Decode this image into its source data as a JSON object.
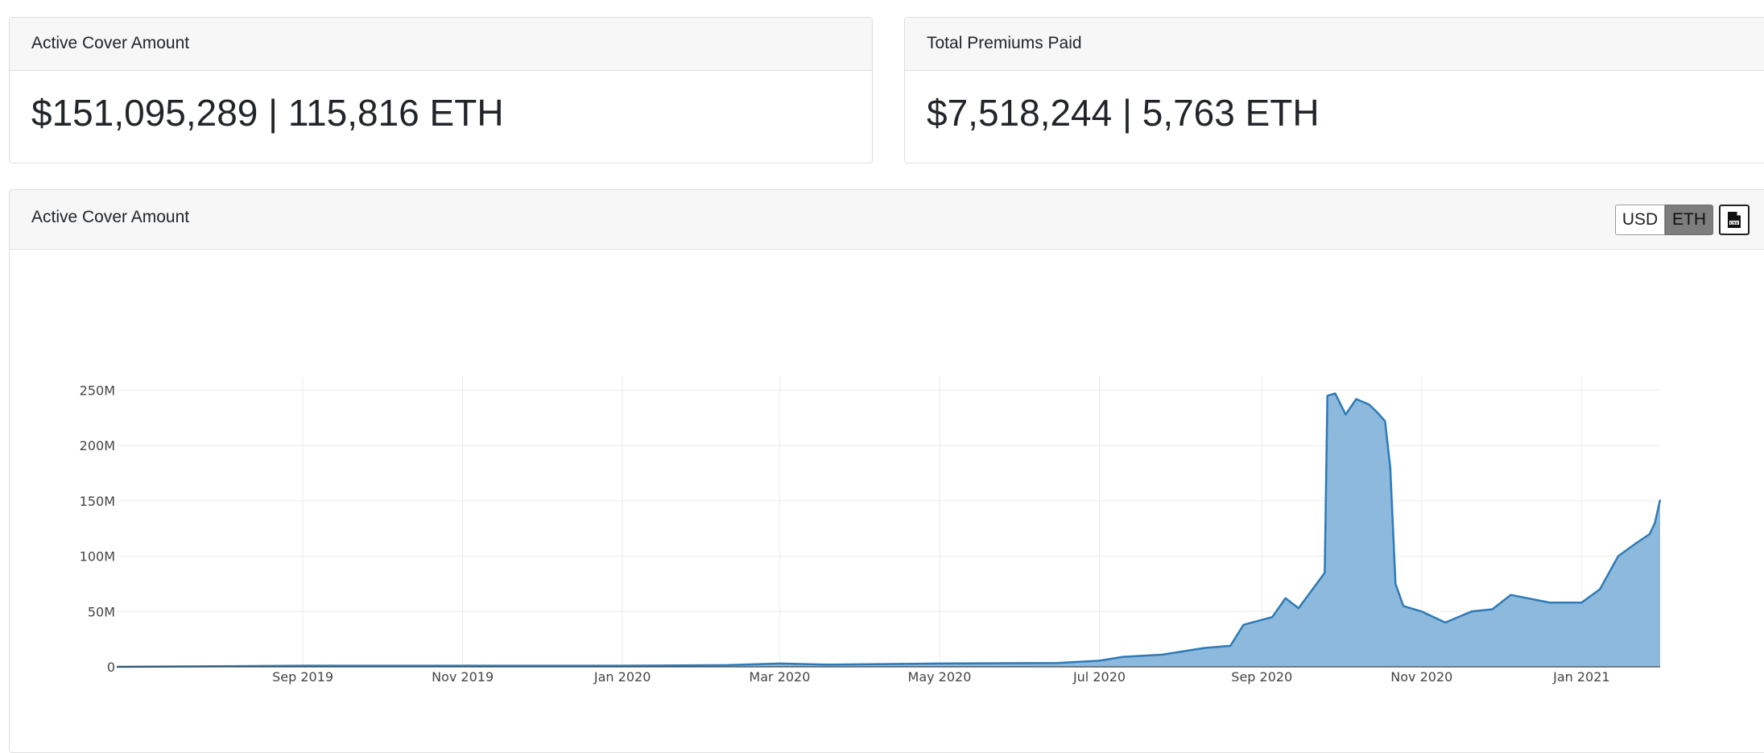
{
  "stats": {
    "active_cover": {
      "title": "Active Cover Amount",
      "value": "$151,095,289 | 115,816 ETH"
    },
    "premiums": {
      "title": "Total Premiums Paid",
      "value": "$7,518,244 | 5,763 ETH"
    }
  },
  "chart_panel": {
    "title": "Active Cover Amount",
    "toggle": {
      "usd_label": "USD",
      "eth_label": "ETH",
      "selected": "ETH"
    },
    "export_icon": "csv-file-icon"
  },
  "colors": {
    "line": "#2d7ab8",
    "fill": "#8db9dc",
    "grid": "#ebebeb",
    "eth_selected": "#7d7d7d"
  },
  "chart_data": {
    "type": "area",
    "title": "",
    "xlabel": "",
    "ylabel": "",
    "grid": true,
    "legend": "none",
    "ylim": [
      0,
      262000000
    ],
    "xlim": [
      "2019-06-22",
      "2021-01-31"
    ],
    "x_ticks": [
      {
        "date": "2019-09-01",
        "label": "Sep 2019"
      },
      {
        "date": "2019-11-01",
        "label": "Nov 2019"
      },
      {
        "date": "2020-01-01",
        "label": "Jan 2020"
      },
      {
        "date": "2020-03-01",
        "label": "Mar 2020"
      },
      {
        "date": "2020-05-01",
        "label": "May 2020"
      },
      {
        "date": "2020-07-01",
        "label": "Jul 2020"
      },
      {
        "date": "2020-09-01",
        "label": "Sep 2020"
      },
      {
        "date": "2020-11-01",
        "label": "Nov 2020"
      },
      {
        "date": "2021-01-01",
        "label": "Jan 2021"
      }
    ],
    "y_ticks": [
      {
        "value": 0,
        "label": "0"
      },
      {
        "value": 50000000,
        "label": "50M"
      },
      {
        "value": 100000000,
        "label": "100M"
      },
      {
        "value": 150000000,
        "label": "150M"
      },
      {
        "value": 200000000,
        "label": "200M"
      },
      {
        "value": 250000000,
        "label": "250M"
      }
    ],
    "series": [
      {
        "x": [
          "2019-06-22",
          "2019-08-01",
          "2019-09-01",
          "2019-11-01",
          "2020-01-01",
          "2020-02-10",
          "2020-03-01",
          "2020-03-20",
          "2020-05-01",
          "2020-06-15",
          "2020-07-01",
          "2020-07-10",
          "2020-07-25",
          "2020-08-10",
          "2020-08-20",
          "2020-08-25",
          "2020-09-05",
          "2020-09-10",
          "2020-09-15",
          "2020-09-25",
          "2020-09-26",
          "2020-09-29",
          "2020-10-03",
          "2020-10-07",
          "2020-10-12",
          "2020-10-15",
          "2020-10-18",
          "2020-10-20",
          "2020-10-22",
          "2020-10-25",
          "2020-11-01",
          "2020-11-10",
          "2020-11-20",
          "2020-11-28",
          "2020-12-05",
          "2020-12-20",
          "2021-01-01",
          "2021-01-08",
          "2021-01-15",
          "2021-01-22",
          "2021-01-27",
          "2021-01-29",
          "2021-01-31"
        ],
        "y": [
          0,
          500000,
          1000000,
          1000000,
          1000000,
          1500000,
          3000000,
          2000000,
          3000000,
          3500000,
          5500000,
          9000000,
          11000000,
          17000000,
          19000000,
          38000000,
          45000000,
          62000000,
          53000000,
          85000000,
          245000000,
          247000000,
          228000000,
          242000000,
          237000000,
          230000000,
          222000000,
          180000000,
          75000000,
          55000000,
          50000000,
          40000000,
          50000000,
          52000000,
          65000000,
          58000000,
          58000000,
          70000000,
          100000000,
          112000000,
          120000000,
          130000000,
          151000000
        ]
      }
    ]
  }
}
